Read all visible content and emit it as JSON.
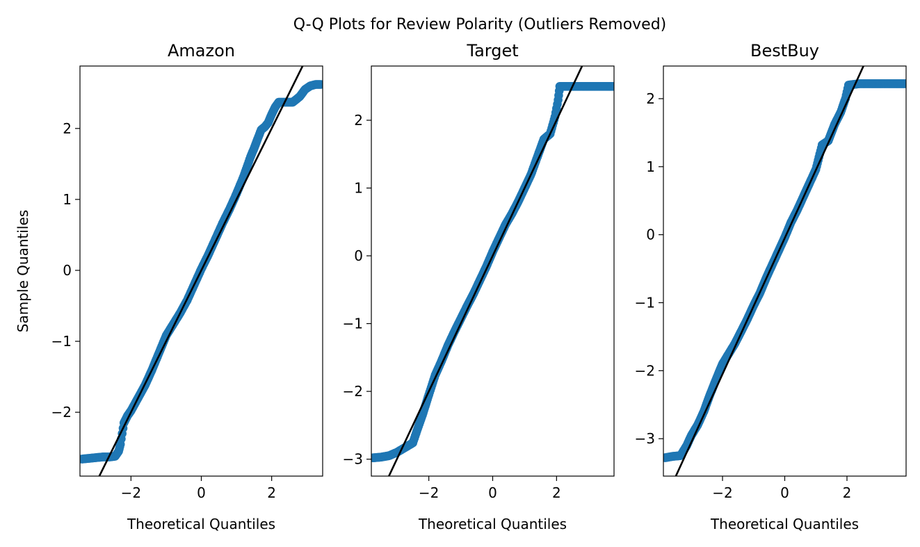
{
  "figure": {
    "suptitle": "Q-Q Plots for Review Polarity (Outliers Removed)",
    "background": "#ffffff"
  },
  "chart_data": [
    {
      "type": "scatter",
      "title": "Amazon",
      "xlabel": "Theoretical Quantiles",
      "ylabel": "Sample Quantiles",
      "xlim": [
        -3.45,
        3.45
      ],
      "ylim": [
        -2.9,
        2.88
      ],
      "xticks": [
        -2,
        0,
        2
      ],
      "yticks": [
        -2,
        -1,
        0,
        1,
        2
      ],
      "grid": false,
      "marker_color": "#1f77b4",
      "line_color": "#000000",
      "reference_line": {
        "slope": 1.0,
        "intercept": 0.0
      },
      "series": [
        {
          "points": [
            [
              -3.4,
              -2.66
            ],
            [
              -3.2,
              -2.65
            ],
            [
              -3.0,
              -2.64
            ],
            [
              -2.8,
              -2.63
            ],
            [
              -2.6,
              -2.63
            ],
            [
              -2.45,
              -2.62
            ],
            [
              -2.35,
              -2.55
            ],
            [
              -2.3,
              -2.45
            ],
            [
              -2.25,
              -2.3
            ],
            [
              -2.2,
              -2.15
            ],
            [
              -2.1,
              -2.05
            ],
            [
              -2.0,
              -1.98
            ],
            [
              -1.8,
              -1.8
            ],
            [
              -1.6,
              -1.62
            ],
            [
              -1.4,
              -1.4
            ],
            [
              -1.2,
              -1.16
            ],
            [
              -1.0,
              -0.92
            ],
            [
              -0.8,
              -0.76
            ],
            [
              -0.6,
              -0.6
            ],
            [
              -0.4,
              -0.42
            ],
            [
              -0.2,
              -0.2
            ],
            [
              0.0,
              0.02
            ],
            [
              0.2,
              0.22
            ],
            [
              0.4,
              0.44
            ],
            [
              0.6,
              0.66
            ],
            [
              0.8,
              0.86
            ],
            [
              1.0,
              1.08
            ],
            [
              1.2,
              1.32
            ],
            [
              1.4,
              1.6
            ],
            [
              1.5,
              1.72
            ],
            [
              1.6,
              1.85
            ],
            [
              1.7,
              1.98
            ],
            [
              1.8,
              2.02
            ],
            [
              1.9,
              2.08
            ],
            [
              2.0,
              2.2
            ],
            [
              2.1,
              2.3
            ],
            [
              2.2,
              2.37
            ],
            [
              2.4,
              2.37
            ],
            [
              2.6,
              2.37
            ],
            [
              2.8,
              2.45
            ],
            [
              2.95,
              2.55
            ],
            [
              3.1,
              2.6
            ],
            [
              3.25,
              2.62
            ],
            [
              3.4,
              2.62
            ]
          ]
        }
      ]
    },
    {
      "type": "scatter",
      "title": "Target",
      "xlabel": "Theoretical Quantiles",
      "ylabel": "",
      "xlim": [
        -3.8,
        3.8
      ],
      "ylim": [
        -3.25,
        2.8
      ],
      "xticks": [
        -2,
        0,
        2
      ],
      "yticks": [
        -3,
        -2,
        -1,
        0,
        1,
        2
      ],
      "grid": false,
      "marker_color": "#1f77b4",
      "line_color": "#000000",
      "reference_line": {
        "slope": 1.0,
        "intercept": 0.0
      },
      "series": [
        {
          "points": [
            [
              -3.75,
              -2.98
            ],
            [
              -3.5,
              -2.97
            ],
            [
              -3.25,
              -2.95
            ],
            [
              -3.0,
              -2.9
            ],
            [
              -2.75,
              -2.83
            ],
            [
              -2.5,
              -2.76
            ],
            [
              -2.35,
              -2.55
            ],
            [
              -2.2,
              -2.35
            ],
            [
              -2.0,
              -2.05
            ],
            [
              -1.8,
              -1.76
            ],
            [
              -1.6,
              -1.55
            ],
            [
              -1.4,
              -1.32
            ],
            [
              -1.2,
              -1.12
            ],
            [
              -1.0,
              -0.93
            ],
            [
              -0.8,
              -0.74
            ],
            [
              -0.6,
              -0.56
            ],
            [
              -0.4,
              -0.36
            ],
            [
              -0.2,
              -0.16
            ],
            [
              0.0,
              0.06
            ],
            [
              0.2,
              0.26
            ],
            [
              0.4,
              0.46
            ],
            [
              0.6,
              0.62
            ],
            [
              0.8,
              0.8
            ],
            [
              1.0,
              1.0
            ],
            [
              1.2,
              1.2
            ],
            [
              1.4,
              1.46
            ],
            [
              1.6,
              1.72
            ],
            [
              1.8,
              1.8
            ],
            [
              1.95,
              2.05
            ],
            [
              2.05,
              2.3
            ],
            [
              2.1,
              2.5
            ],
            [
              2.4,
              2.5
            ],
            [
              2.8,
              2.5
            ],
            [
              3.2,
              2.5
            ],
            [
              3.6,
              2.5
            ],
            [
              3.78,
              2.5
            ]
          ]
        }
      ]
    },
    {
      "type": "scatter",
      "title": "BestBuy",
      "xlabel": "Theoretical Quantiles",
      "ylabel": "",
      "xlim": [
        -3.9,
        3.9
      ],
      "ylim": [
        -3.55,
        2.48
      ],
      "xticks": [
        -2,
        0,
        2
      ],
      "yticks": [
        -3,
        -2,
        -1,
        0,
        1,
        2
      ],
      "grid": false,
      "marker_color": "#1f77b4",
      "line_color": "#000000",
      "reference_line": {
        "slope": 1.0,
        "intercept": -0.05
      },
      "series": [
        {
          "points": [
            [
              -3.85,
              -3.28
            ],
            [
              -3.6,
              -3.26
            ],
            [
              -3.35,
              -3.25
            ],
            [
              -3.15,
              -3.1
            ],
            [
              -3.0,
              -2.95
            ],
            [
              -2.8,
              -2.8
            ],
            [
              -2.6,
              -2.6
            ],
            [
              -2.4,
              -2.35
            ],
            [
              -2.2,
              -2.12
            ],
            [
              -2.0,
              -1.9
            ],
            [
              -1.8,
              -1.75
            ],
            [
              -1.6,
              -1.6
            ],
            [
              -1.4,
              -1.42
            ],
            [
              -1.2,
              -1.24
            ],
            [
              -1.0,
              -1.04
            ],
            [
              -0.8,
              -0.86
            ],
            [
              -0.6,
              -0.64
            ],
            [
              -0.4,
              -0.44
            ],
            [
              -0.2,
              -0.24
            ],
            [
              0.0,
              -0.04
            ],
            [
              0.2,
              0.18
            ],
            [
              0.4,
              0.36
            ],
            [
              0.6,
              0.56
            ],
            [
              0.8,
              0.76
            ],
            [
              1.0,
              0.96
            ],
            [
              1.2,
              1.32
            ],
            [
              1.4,
              1.38
            ],
            [
              1.6,
              1.62
            ],
            [
              1.8,
              1.8
            ],
            [
              1.95,
              2.0
            ],
            [
              2.05,
              2.2
            ],
            [
              2.4,
              2.22
            ],
            [
              2.8,
              2.22
            ],
            [
              3.2,
              2.22
            ],
            [
              3.6,
              2.22
            ],
            [
              3.88,
              2.22
            ]
          ]
        }
      ]
    }
  ]
}
